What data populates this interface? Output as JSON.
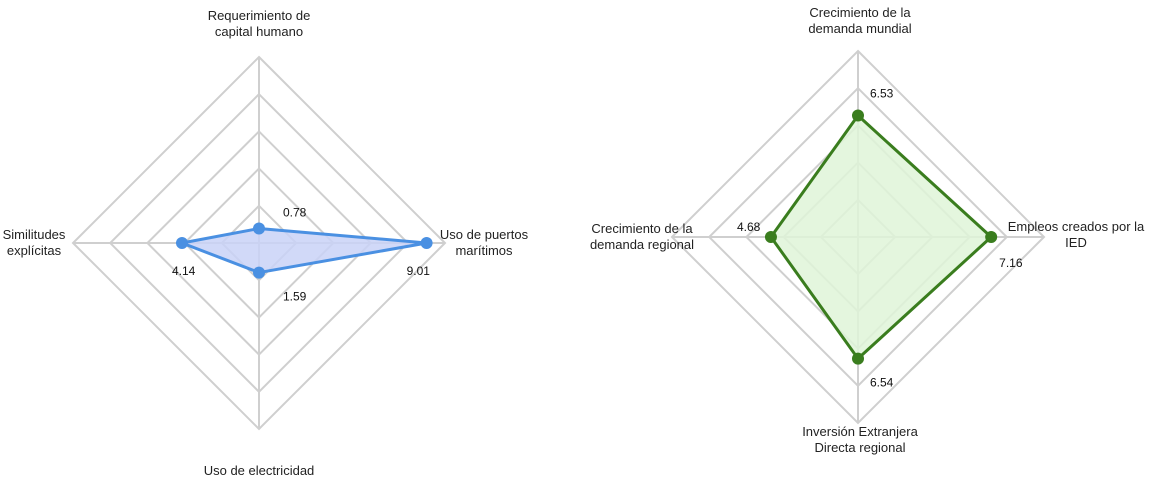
{
  "chart_data": [
    {
      "type": "radar",
      "range": [
        0,
        10
      ],
      "rings": 5,
      "color": "#4a90e2",
      "fill": "#c9d2f7",
      "axes": [
        {
          "label": [
            "Requerimiento de",
            "capital humano"
          ],
          "value": 0.78,
          "value_text": "0.78"
        },
        {
          "label": [
            "Uso de puertos",
            "marítimos"
          ],
          "value": 9.01,
          "value_text": "9.01"
        },
        {
          "label": [
            "Uso de electricidad"
          ],
          "value": 1.59,
          "value_text": "1.59"
        },
        {
          "label": [
            "Similitudes",
            "explícitas"
          ],
          "value": 4.14,
          "value_text": "4.14"
        }
      ]
    },
    {
      "type": "radar",
      "range": [
        0,
        10
      ],
      "rings": 5,
      "color": "#3a7d1e",
      "fill": "#dff5d8",
      "axes": [
        {
          "label": [
            "Crecimiento de la",
            "demanda mundial"
          ],
          "value": 6.53,
          "value_text": "6.53"
        },
        {
          "label": [
            "Empleos creados por la",
            "IED"
          ],
          "value": 7.16,
          "value_text": "7.16"
        },
        {
          "label": [
            "Inversión Extranjera",
            "Directa regional"
          ],
          "value": 6.54,
          "value_text": "6.54"
        },
        {
          "label": [
            "Crecimiento de la",
            "demanda regional"
          ],
          "value": 4.68,
          "value_text": "4.68"
        }
      ]
    }
  ]
}
